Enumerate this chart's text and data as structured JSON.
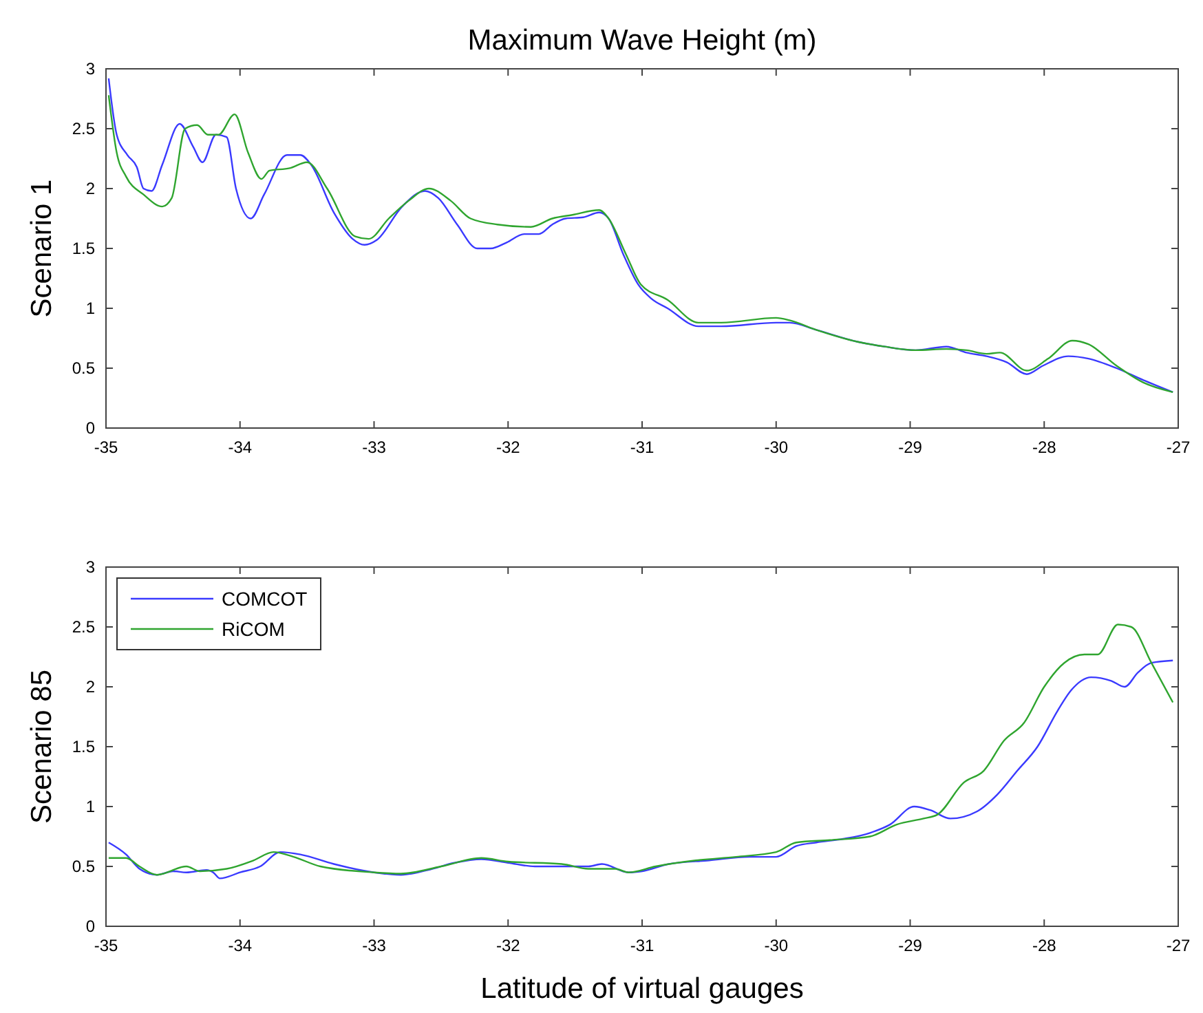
{
  "chart_data": [
    {
      "type": "line",
      "title": "Maximum Wave Height (m)",
      "ylabel": "Scenario 1",
      "xlim": [
        -35,
        -27
      ],
      "ylim": [
        0,
        3
      ],
      "xticks": [
        -35,
        -34,
        -33,
        -32,
        -31,
        -30,
        -29,
        -28,
        -27
      ],
      "yticks": [
        0,
        0.5,
        1,
        1.5,
        2,
        2.5,
        3
      ],
      "grid": false,
      "legend": false,
      "series": [
        {
          "color": "#3a3aff",
          "x": [
            -34.98,
            -34.92,
            -34.84,
            -34.77,
            -34.72,
            -34.66,
            -34.58,
            -34.45,
            -34.35,
            -34.28,
            -34.18,
            -34.1,
            -34.03,
            -33.92,
            -33.82,
            -33.65,
            -33.55,
            -33.47,
            -33.3,
            -33.16,
            -33.07,
            -32.98,
            -32.79,
            -32.62,
            -32.52,
            -32.38,
            -32.23,
            -32.13,
            -32.01,
            -31.88,
            -31.77,
            -31.67,
            -31.57,
            -31.44,
            -31.32,
            -31.25,
            -31.14,
            -31.03,
            -30.93,
            -30.81,
            -30.58,
            -30.41,
            -30.0,
            -29.9,
            -29.7,
            -29.39,
            -29.19,
            -28.96,
            -28.73,
            -28.58,
            -28.43,
            -28.28,
            -28.13,
            -28.01,
            -27.82,
            -27.67,
            -27.46,
            -27.26,
            -27.04
          ],
          "values": [
            2.92,
            2.45,
            2.28,
            2.18,
            2.0,
            1.98,
            2.2,
            2.54,
            2.35,
            2.22,
            2.45,
            2.43,
            2.0,
            1.75,
            1.95,
            2.28,
            2.28,
            2.2,
            1.8,
            1.58,
            1.53,
            1.57,
            1.85,
            1.98,
            1.92,
            1.7,
            1.5,
            1.5,
            1.55,
            1.62,
            1.62,
            1.7,
            1.75,
            1.76,
            1.8,
            1.75,
            1.45,
            1.2,
            1.08,
            1.0,
            0.85,
            0.85,
            0.88,
            0.88,
            0.82,
            0.72,
            0.68,
            0.65,
            0.68,
            0.63,
            0.6,
            0.55,
            0.45,
            0.52,
            0.6,
            0.58,
            0.5,
            0.4,
            0.3
          ]
        },
        {
          "color": "#2fa52f",
          "x": [
            -34.98,
            -34.92,
            -34.85,
            -34.72,
            -34.58,
            -34.51,
            -34.41,
            -34.32,
            -34.24,
            -34.16,
            -34.04,
            -33.94,
            -33.84,
            -33.78,
            -33.63,
            -33.5,
            -33.35,
            -33.14,
            -33.04,
            -32.89,
            -32.74,
            -32.59,
            -32.43,
            -32.28,
            -32.08,
            -31.83,
            -31.67,
            -31.52,
            -31.32,
            -31.25,
            -31.12,
            -31.01,
            -30.81,
            -30.58,
            -30.41,
            -30.0,
            -29.9,
            -29.7,
            -29.39,
            -29.19,
            -28.96,
            -28.73,
            -28.58,
            -28.43,
            -28.33,
            -28.13,
            -27.97,
            -27.79,
            -27.67,
            -27.46,
            -27.26,
            -27.04
          ],
          "values": [
            2.78,
            2.3,
            2.1,
            1.95,
            1.85,
            1.92,
            2.5,
            2.53,
            2.45,
            2.45,
            2.62,
            2.3,
            2.08,
            2.15,
            2.17,
            2.22,
            2.0,
            1.6,
            1.58,
            1.75,
            1.9,
            2.0,
            1.9,
            1.75,
            1.7,
            1.68,
            1.75,
            1.78,
            1.82,
            1.75,
            1.45,
            1.2,
            1.07,
            0.88,
            0.88,
            0.92,
            0.9,
            0.82,
            0.72,
            0.68,
            0.65,
            0.66,
            0.65,
            0.62,
            0.63,
            0.48,
            0.58,
            0.73,
            0.7,
            0.52,
            0.38,
            0.3
          ]
        }
      ]
    },
    {
      "type": "line",
      "xlabel": "Latitude of virtual gauges",
      "ylabel": "Scenario 85",
      "xlim": [
        -35,
        -27
      ],
      "ylim": [
        0,
        3
      ],
      "xticks": [
        -35,
        -34,
        -33,
        -32,
        -31,
        -30,
        -29,
        -28,
        -27
      ],
      "yticks": [
        0,
        0.5,
        1,
        1.5,
        2,
        2.5,
        3
      ],
      "grid": false,
      "legend": "top left",
      "series": [
        {
          "name": "COMCOT",
          "color": "#3a3aff",
          "x": [
            -34.98,
            -34.85,
            -34.75,
            -34.62,
            -34.5,
            -34.4,
            -34.25,
            -34.2,
            -34.15,
            -34.0,
            -33.85,
            -33.7,
            -33.55,
            -33.3,
            -33.0,
            -32.8,
            -32.6,
            -32.4,
            -32.2,
            -32.0,
            -31.8,
            -31.55,
            -31.4,
            -31.3,
            -31.1,
            -31.0,
            -30.8,
            -30.5,
            -30.2,
            -30.0,
            -29.85,
            -29.7,
            -29.5,
            -29.3,
            -29.15,
            -28.97,
            -28.85,
            -28.7,
            -28.5,
            -28.35,
            -28.2,
            -28.05,
            -27.9,
            -27.8,
            -27.65,
            -27.5,
            -27.4,
            -27.3,
            -27.2,
            -27.04
          ],
          "values": [
            0.7,
            0.6,
            0.48,
            0.43,
            0.46,
            0.45,
            0.47,
            0.45,
            0.4,
            0.45,
            0.5,
            0.62,
            0.6,
            0.52,
            0.45,
            0.43,
            0.47,
            0.53,
            0.56,
            0.53,
            0.5,
            0.5,
            0.5,
            0.52,
            0.45,
            0.46,
            0.52,
            0.55,
            0.58,
            0.58,
            0.67,
            0.7,
            0.73,
            0.78,
            0.85,
            1.0,
            0.97,
            0.9,
            0.96,
            1.1,
            1.3,
            1.5,
            1.8,
            1.97,
            2.08,
            2.05,
            2.0,
            2.12,
            2.2,
            2.22
          ]
        },
        {
          "name": "RiCOM",
          "color": "#2fa52f",
          "x": [
            -34.98,
            -34.85,
            -34.75,
            -34.62,
            -34.4,
            -34.3,
            -34.1,
            -33.9,
            -33.75,
            -33.6,
            -33.4,
            -33.0,
            -32.8,
            -32.5,
            -32.2,
            -32.0,
            -31.6,
            -31.4,
            -31.2,
            -31.1,
            -30.9,
            -30.6,
            -30.3,
            -30.0,
            -29.85,
            -29.6,
            -29.3,
            -29.1,
            -28.9,
            -28.8,
            -28.6,
            -28.45,
            -28.3,
            -28.15,
            -28.0,
            -27.85,
            -27.7,
            -27.6,
            -27.45,
            -27.35,
            -27.2,
            -27.04
          ],
          "values": [
            0.57,
            0.57,
            0.5,
            0.43,
            0.5,
            0.46,
            0.48,
            0.55,
            0.62,
            0.58,
            0.5,
            0.45,
            0.44,
            0.5,
            0.57,
            0.54,
            0.52,
            0.48,
            0.48,
            0.45,
            0.5,
            0.55,
            0.58,
            0.62,
            0.7,
            0.72,
            0.75,
            0.85,
            0.9,
            0.93,
            1.2,
            1.3,
            1.55,
            1.7,
            2.0,
            2.2,
            2.27,
            2.27,
            2.52,
            2.5,
            2.2,
            1.87
          ]
        }
      ]
    }
  ]
}
